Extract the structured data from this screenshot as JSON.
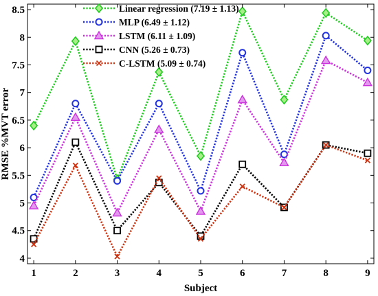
{
  "chart_data": {
    "type": "line",
    "xlabel": "Subject",
    "ylabel": "RMSE %MVT error",
    "x": [
      1,
      2,
      3,
      4,
      5,
      6,
      7,
      8,
      9
    ],
    "xlim": [
      0.85,
      9.15
    ],
    "ylim": [
      3.9,
      8.6
    ],
    "xticks": [
      1,
      2,
      3,
      4,
      5,
      6,
      7,
      8,
      9
    ],
    "yticks": [
      4,
      4.5,
      5,
      5.5,
      6,
      6.5,
      7,
      7.5,
      8,
      8.5
    ],
    "grid": false,
    "legend_position": "top-center",
    "series": [
      {
        "name": "Linear regression (7.19 ± 1.13)",
        "color": "#22cc22",
        "marker": "diamond",
        "values": [
          6.4,
          7.93,
          5.43,
          7.37,
          5.85,
          8.47,
          6.87,
          8.44,
          7.94
        ]
      },
      {
        "name": "MLP (6.49 ± 1.12)",
        "color": "#2233dd",
        "marker": "circle",
        "values": [
          5.1,
          6.8,
          5.4,
          6.8,
          5.22,
          7.72,
          5.88,
          8.03,
          7.4
        ]
      },
      {
        "name": "LSTM (6.11 ± 1.09)",
        "color": "#cc33dd",
        "marker": "triangle",
        "values": [
          4.95,
          6.55,
          4.82,
          6.33,
          4.85,
          6.87,
          5.73,
          7.58,
          7.18
        ]
      },
      {
        "name": "CNN (5.26 ± 0.73)",
        "color": "#000000",
        "marker": "square",
        "values": [
          4.35,
          6.1,
          4.5,
          5.37,
          4.4,
          5.7,
          4.92,
          6.05,
          5.9
        ]
      },
      {
        "name": "C-LSTM (5.09 ± 0.74)",
        "color": "#cc3311",
        "marker": "x",
        "values": [
          4.25,
          5.68,
          4.03,
          5.45,
          4.35,
          5.3,
          4.92,
          6.05,
          5.77
        ]
      }
    ]
  }
}
